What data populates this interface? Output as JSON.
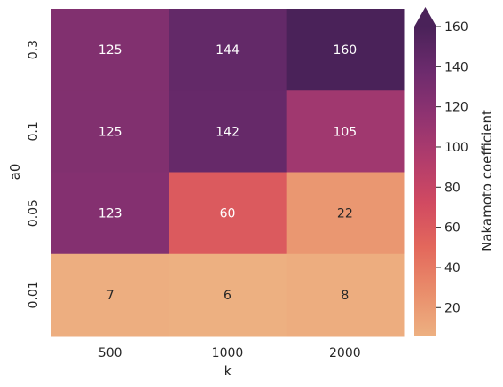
{
  "chart_data": {
    "type": "heatmap",
    "x_categories": [
      "500",
      "1000",
      "2000"
    ],
    "y_categories": [
      "0.3",
      "0.1",
      "0.05",
      "0.01"
    ],
    "values": [
      [
        125,
        144,
        160
      ],
      [
        125,
        142,
        105
      ],
      [
        123,
        60,
        22
      ],
      [
        7,
        6,
        8
      ]
    ],
    "xlabel": "k",
    "ylabel": "a0",
    "colorbar": {
      "label": "Nakamoto coefficient",
      "min": 6,
      "max": 160,
      "ticks": [
        20,
        40,
        60,
        80,
        100,
        120,
        140,
        160
      ],
      "extend": "max",
      "colormap": "flare",
      "stops": [
        "#edb081",
        "#e98d6b",
        "#e3685c",
        "#d14a61",
        "#b13c6c",
        "#8f3371",
        "#6c2b6d",
        "#4a2259"
      ]
    }
  }
}
